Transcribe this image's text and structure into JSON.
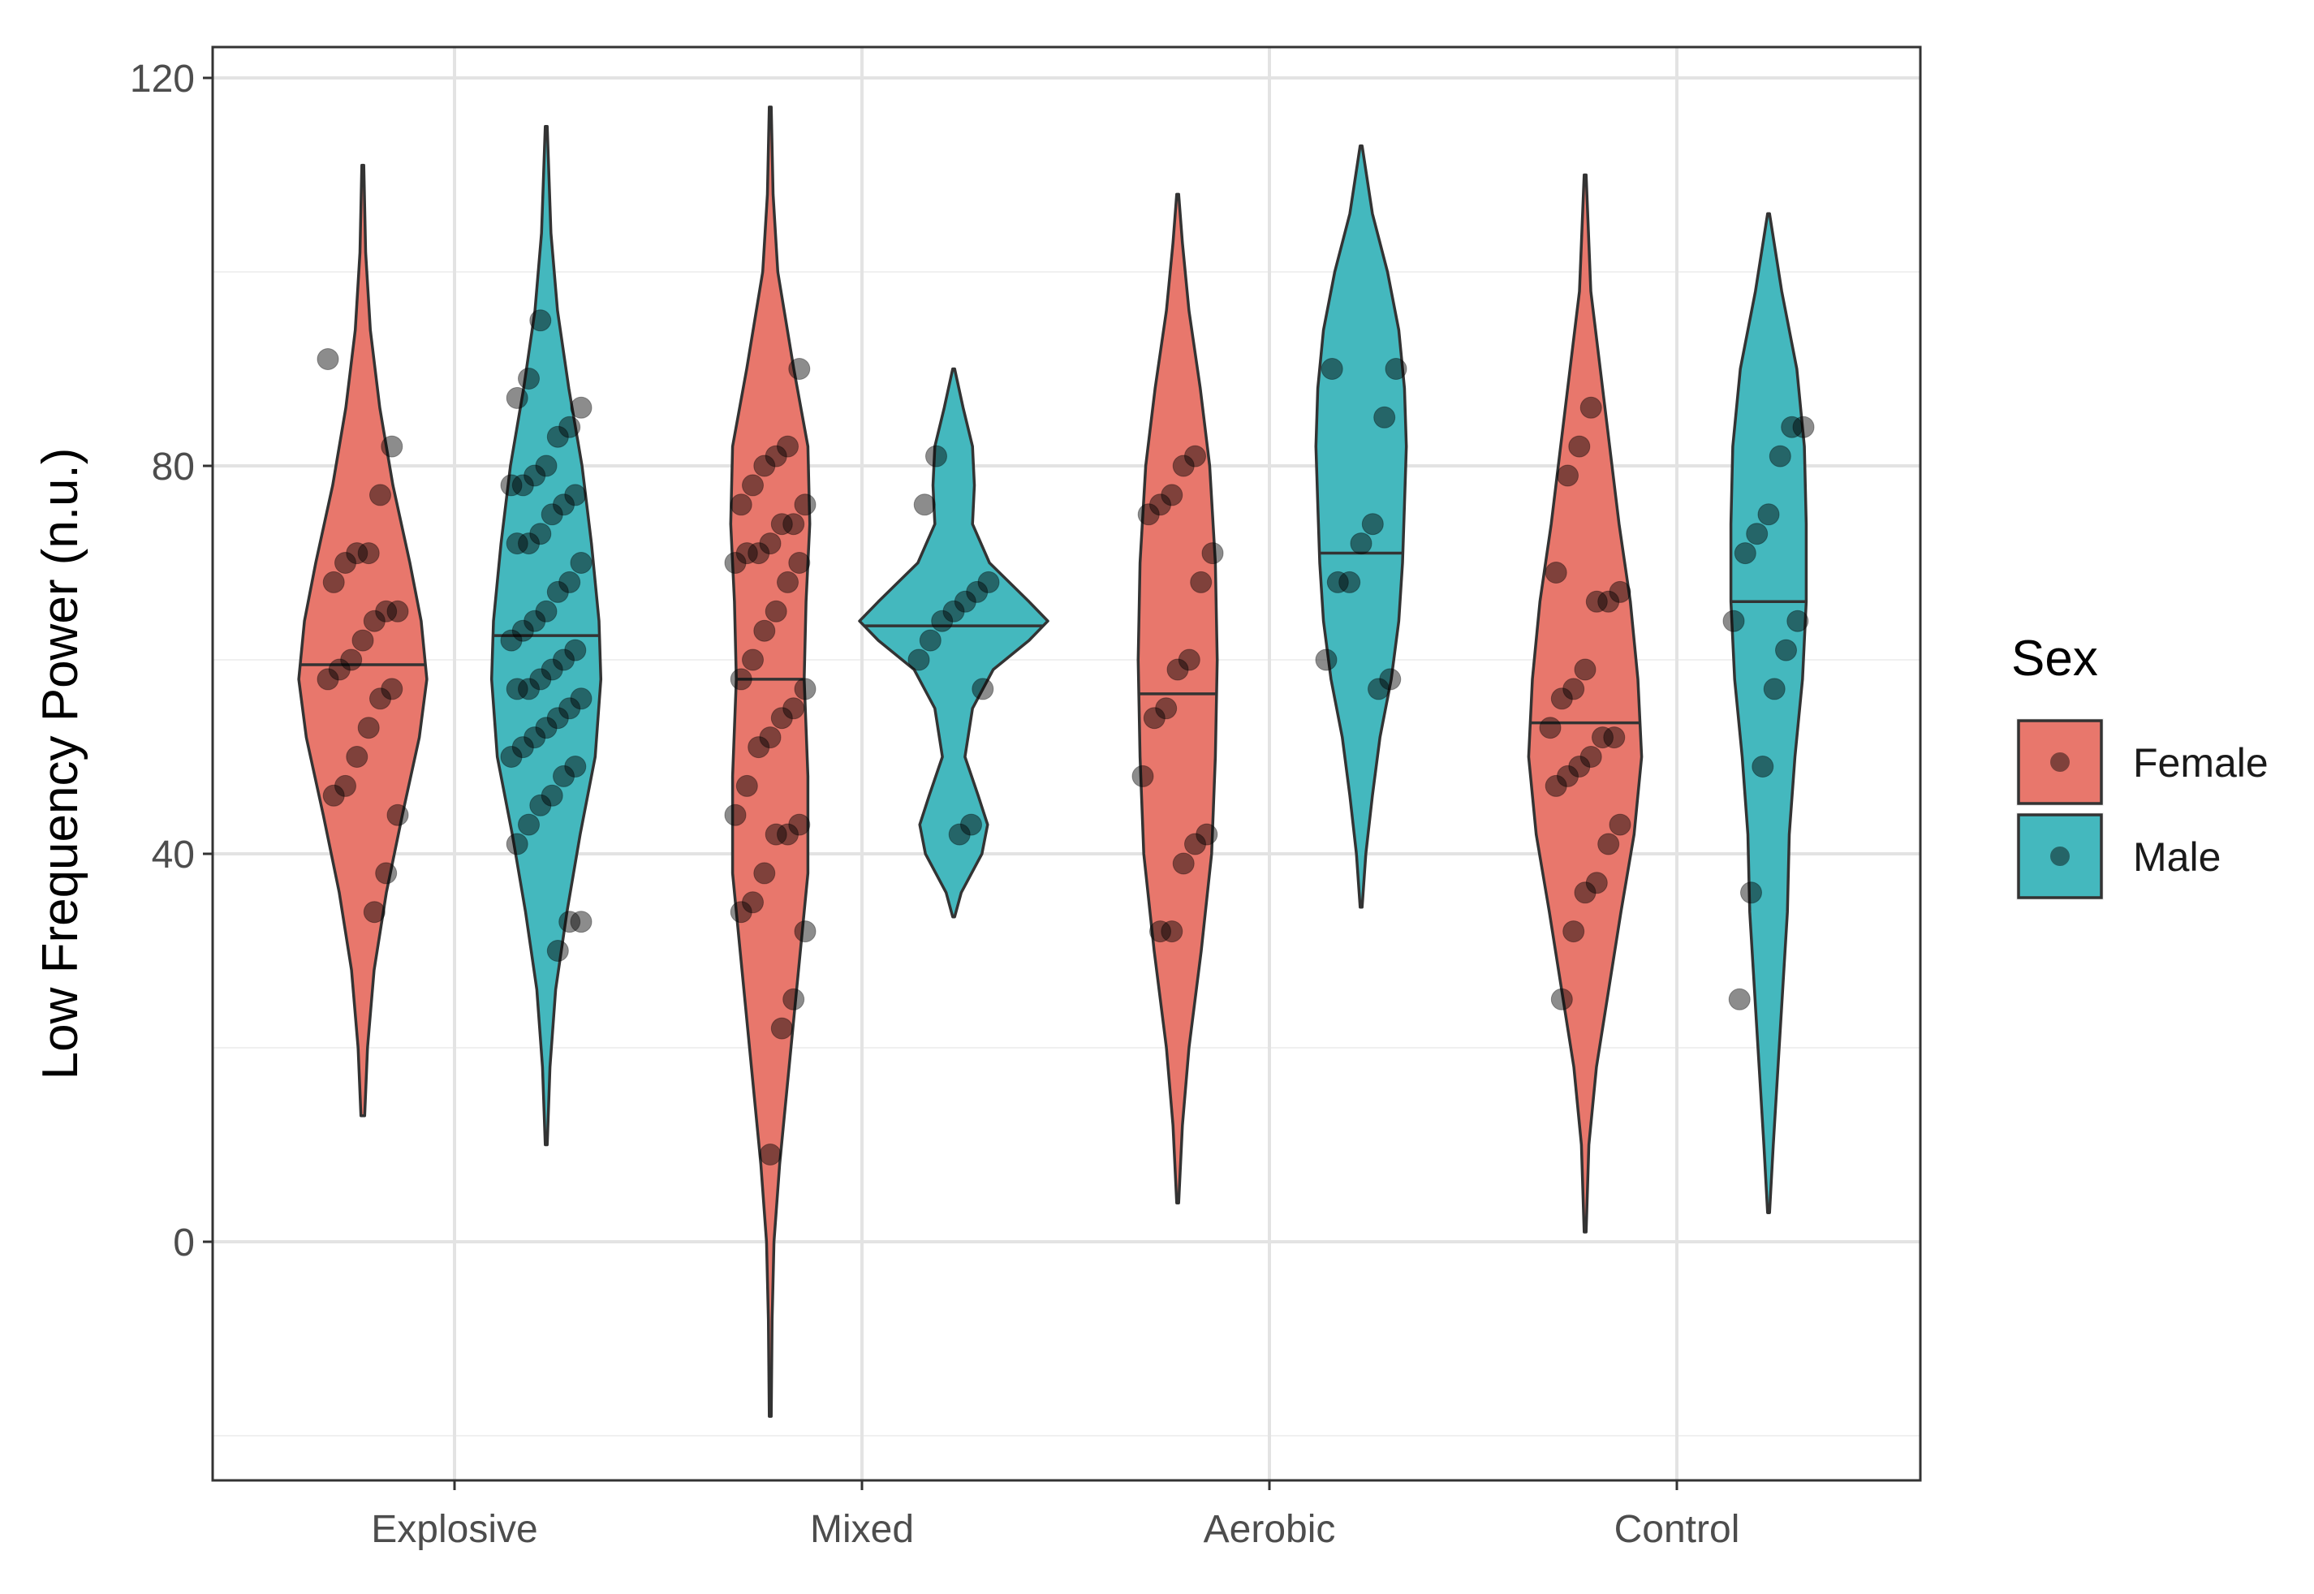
{
  "chart_data": {
    "type": "violin",
    "title": "",
    "xlabel": "",
    "ylabel": "Low Frequency Power (n.u.)",
    "ylim": [
      -20,
      123
    ],
    "yticks": [
      0,
      40,
      80,
      120
    ],
    "ytick_labels": [
      "0",
      "40",
      "80",
      "120"
    ],
    "categories": [
      "Explosive",
      "Mixed",
      "Aerobic",
      "Control"
    ],
    "legend": {
      "title": "Sex",
      "position": "right",
      "entries": [
        {
          "name": "Female",
          "color": "#E8776C"
        },
        {
          "name": "Male",
          "color": "#44B8BE"
        }
      ]
    },
    "grid": true,
    "series": [
      {
        "name": "Female",
        "color": "#E8776C",
        "violins": [
          {
            "category": "Explosive",
            "median": 59.5,
            "profile": [
              [
                13,
                0.02
              ],
              [
                20,
                0.05
              ],
              [
                28,
                0.12
              ],
              [
                36,
                0.25
              ],
              [
                44,
                0.42
              ],
              [
                52,
                0.6
              ],
              [
                58,
                0.68
              ],
              [
                64,
                0.62
              ],
              [
                70,
                0.5
              ],
              [
                78,
                0.32
              ],
              [
                86,
                0.18
              ],
              [
                94,
                0.08
              ],
              [
                102,
                0.03
              ],
              [
                111,
                0.01
              ]
            ],
            "points": [
              91,
              82,
              77,
              71,
              71,
              70,
              68,
              65,
              65,
              64,
              62,
              60,
              59,
              58,
              57,
              56,
              53,
              50,
              47,
              46,
              44,
              38,
              34
            ]
          },
          {
            "category": "Mixed",
            "median": 58,
            "profile": [
              [
                -18,
                0.01
              ],
              [
                -8,
                0.02
              ],
              [
                0,
                0.04
              ],
              [
                8,
                0.1
              ],
              [
                18,
                0.2
              ],
              [
                28,
                0.3
              ],
              [
                38,
                0.4
              ],
              [
                48,
                0.4
              ],
              [
                58,
                0.36
              ],
              [
                66,
                0.38
              ],
              [
                74,
                0.42
              ],
              [
                82,
                0.4
              ],
              [
                90,
                0.25
              ],
              [
                100,
                0.08
              ],
              [
                108,
                0.03
              ],
              [
                117,
                0.01
              ]
            ],
            "points": [
              90,
              82,
              81,
              80,
              78,
              76,
              76,
              74,
              74,
              72,
              71,
              71,
              70,
              70,
              68,
              65,
              63,
              60,
              58,
              57,
              55,
              54,
              52,
              51,
              47,
              44,
              43,
              42,
              42,
              38,
              35,
              34,
              32,
              25,
              22,
              9
            ]
          },
          {
            "category": "Aerobic",
            "median": 56.5,
            "profile": [
              [
                4,
                0.01
              ],
              [
                12,
                0.05
              ],
              [
                20,
                0.12
              ],
              [
                30,
                0.25
              ],
              [
                40,
                0.36
              ],
              [
                50,
                0.4
              ],
              [
                60,
                0.42
              ],
              [
                70,
                0.4
              ],
              [
                80,
                0.34
              ],
              [
                88,
                0.24
              ],
              [
                96,
                0.12
              ],
              [
                103,
                0.05
              ],
              [
                108,
                0.01
              ]
            ],
            "points": [
              81,
              80,
              77,
              76,
              75,
              71,
              68,
              60,
              59,
              55,
              54,
              48,
              42,
              41,
              39,
              32,
              32
            ]
          },
          {
            "category": "Control",
            "median": 53.5,
            "profile": [
              [
                1,
                0.01
              ],
              [
                10,
                0.04
              ],
              [
                18,
                0.12
              ],
              [
                26,
                0.25
              ],
              [
                34,
                0.38
              ],
              [
                42,
                0.52
              ],
              [
                50,
                0.6
              ],
              [
                58,
                0.56
              ],
              [
                66,
                0.48
              ],
              [
                74,
                0.36
              ],
              [
                82,
                0.26
              ],
              [
                90,
                0.16
              ],
              [
                98,
                0.06
              ],
              [
                110,
                0.01
              ]
            ],
            "points": [
              86,
              82,
              79,
              69,
              67,
              66,
              66,
              59,
              57,
              56,
              53,
              52,
              52,
              50,
              49,
              48,
              47,
              43,
              41,
              37,
              36,
              32,
              25
            ]
          }
        ]
      },
      {
        "name": "Male",
        "color": "#44B8BE",
        "violins": [
          {
            "category": "Explosive",
            "median": 62.5,
            "profile": [
              [
                10,
                0.01
              ],
              [
                18,
                0.04
              ],
              [
                26,
                0.1
              ],
              [
                34,
                0.22
              ],
              [
                42,
                0.36
              ],
              [
                50,
                0.52
              ],
              [
                58,
                0.58
              ],
              [
                64,
                0.56
              ],
              [
                72,
                0.48
              ],
              [
                80,
                0.38
              ],
              [
                88,
                0.24
              ],
              [
                96,
                0.12
              ],
              [
                104,
                0.05
              ],
              [
                115,
                0.01
              ]
            ],
            "points": [
              95,
              89,
              87,
              86,
              84,
              83,
              80,
              79,
              78,
              78,
              77,
              76,
              75,
              73,
              72,
              72,
              70,
              68,
              67,
              65,
              64,
              63,
              62,
              61,
              60,
              59,
              58,
              57,
              57,
              56,
              55,
              54,
              53,
              52,
              51,
              50,
              49,
              48,
              46,
              45,
              43,
              41,
              33,
              33,
              30
            ]
          },
          {
            "category": "Mixed",
            "median": 63.5,
            "profile": [
              [
                33.5,
                0.01
              ],
              [
                36,
                0.08
              ],
              [
                40,
                0.3
              ],
              [
                43,
                0.36
              ],
              [
                46,
                0.26
              ],
              [
                50,
                0.12
              ],
              [
                55,
                0.2
              ],
              [
                59,
                0.42
              ],
              [
                62,
                0.8
              ],
              [
                64,
                1.0
              ],
              [
                66,
                0.8
              ],
              [
                70,
                0.38
              ],
              [
                74,
                0.2
              ],
              [
                78,
                0.22
              ],
              [
                82,
                0.2
              ],
              [
                86,
                0.1
              ],
              [
                90,
                0.01
              ]
            ],
            "points": [
              81,
              76,
              68,
              67,
              66,
              65,
              64,
              62,
              60,
              57,
              43,
              42
            ]
          },
          {
            "category": "Aerobic",
            "median": 71,
            "profile": [
              [
                34.5,
                0.01
              ],
              [
                40,
                0.05
              ],
              [
                46,
                0.12
              ],
              [
                52,
                0.2
              ],
              [
                58,
                0.32
              ],
              [
                64,
                0.4
              ],
              [
                70,
                0.44
              ],
              [
                76,
                0.46
              ],
              [
                82,
                0.48
              ],
              [
                88,
                0.46
              ],
              [
                94,
                0.4
              ],
              [
                100,
                0.28
              ],
              [
                106,
                0.12
              ],
              [
                113,
                0.01
              ]
            ],
            "points": [
              90,
              90,
              85,
              74,
              72,
              68,
              68,
              60,
              58,
              57
            ]
          },
          {
            "category": "Control",
            "median": 66,
            "profile": [
              [
                3,
                0.01
              ],
              [
                10,
                0.05
              ],
              [
                18,
                0.1
              ],
              [
                26,
                0.15
              ],
              [
                34,
                0.2
              ],
              [
                42,
                0.22
              ],
              [
                50,
                0.28
              ],
              [
                58,
                0.36
              ],
              [
                66,
                0.4
              ],
              [
                74,
                0.4
              ],
              [
                82,
                0.38
              ],
              [
                90,
                0.3
              ],
              [
                98,
                0.14
              ],
              [
                106,
                0.01
              ]
            ],
            "points": [
              84,
              84,
              81,
              75,
              73,
              71,
              64,
              64,
              61,
              57,
              49,
              36,
              25
            ]
          }
        ]
      }
    ]
  }
}
